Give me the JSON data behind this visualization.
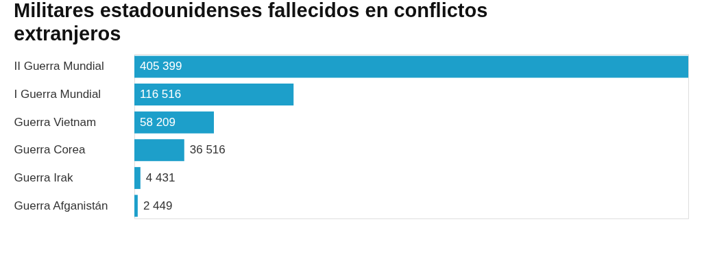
{
  "chart_data": {
    "type": "bar",
    "orientation": "horizontal",
    "title": "Militares estadounidenses fallecidos en conflictos extranjeros",
    "categories": [
      "II Guerra Mundial",
      "I Guerra Mundial",
      "Guerra Vietnam",
      "Guerra Corea",
      "Guerra Irak",
      "Guerra Afganistán"
    ],
    "values": [
      405399,
      116516,
      58209,
      36516,
      4431,
      2449
    ],
    "value_labels": [
      "405 399",
      "116 516",
      "58 209",
      "36 516",
      "4 431",
      "2 449"
    ],
    "color": "#1d9fca",
    "grid": false
  }
}
